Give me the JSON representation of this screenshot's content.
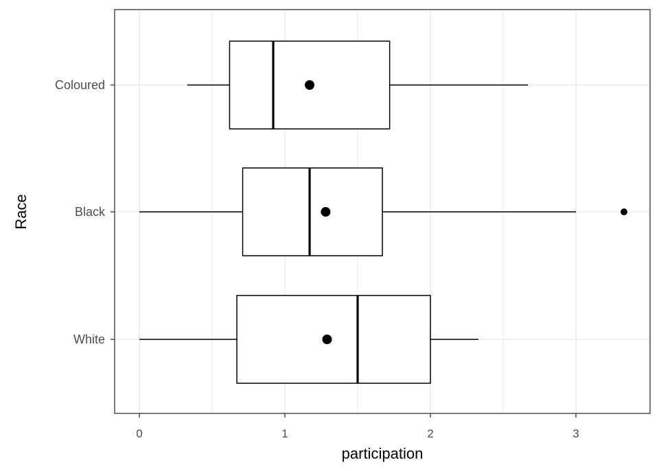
{
  "chart_data": {
    "type": "boxplot",
    "orientation": "horizontal",
    "title": "",
    "xlabel": "participation",
    "ylabel": "Race",
    "xlim": [
      -0.17,
      3.5
    ],
    "x_ticks": [
      0,
      1,
      2,
      3
    ],
    "grid": true,
    "theme": "bw",
    "categories": [
      "Coloured",
      "Black",
      "White"
    ],
    "boxes": [
      {
        "category": "Coloured",
        "whisker_low": 0.33,
        "q1": 0.62,
        "median": 0.92,
        "q3": 1.72,
        "whisker_high": 2.67,
        "mean": 1.17,
        "outliers": []
      },
      {
        "category": "Black",
        "whisker_low": 0.0,
        "q1": 0.71,
        "median": 1.17,
        "q3": 1.67,
        "whisker_high": 3.0,
        "mean": 1.28,
        "outliers": [
          3.33
        ]
      },
      {
        "category": "White",
        "whisker_low": 0.0,
        "q1": 0.67,
        "median": 1.5,
        "q3": 2.0,
        "whisker_high": 2.33,
        "mean": 1.29,
        "outliers": []
      }
    ],
    "colors": {
      "box_fill": "#ffffff",
      "stroke": "#000000",
      "grid": "#ebebeb",
      "panel_border": "#333333",
      "tick_text": "#4d4d4d"
    }
  }
}
